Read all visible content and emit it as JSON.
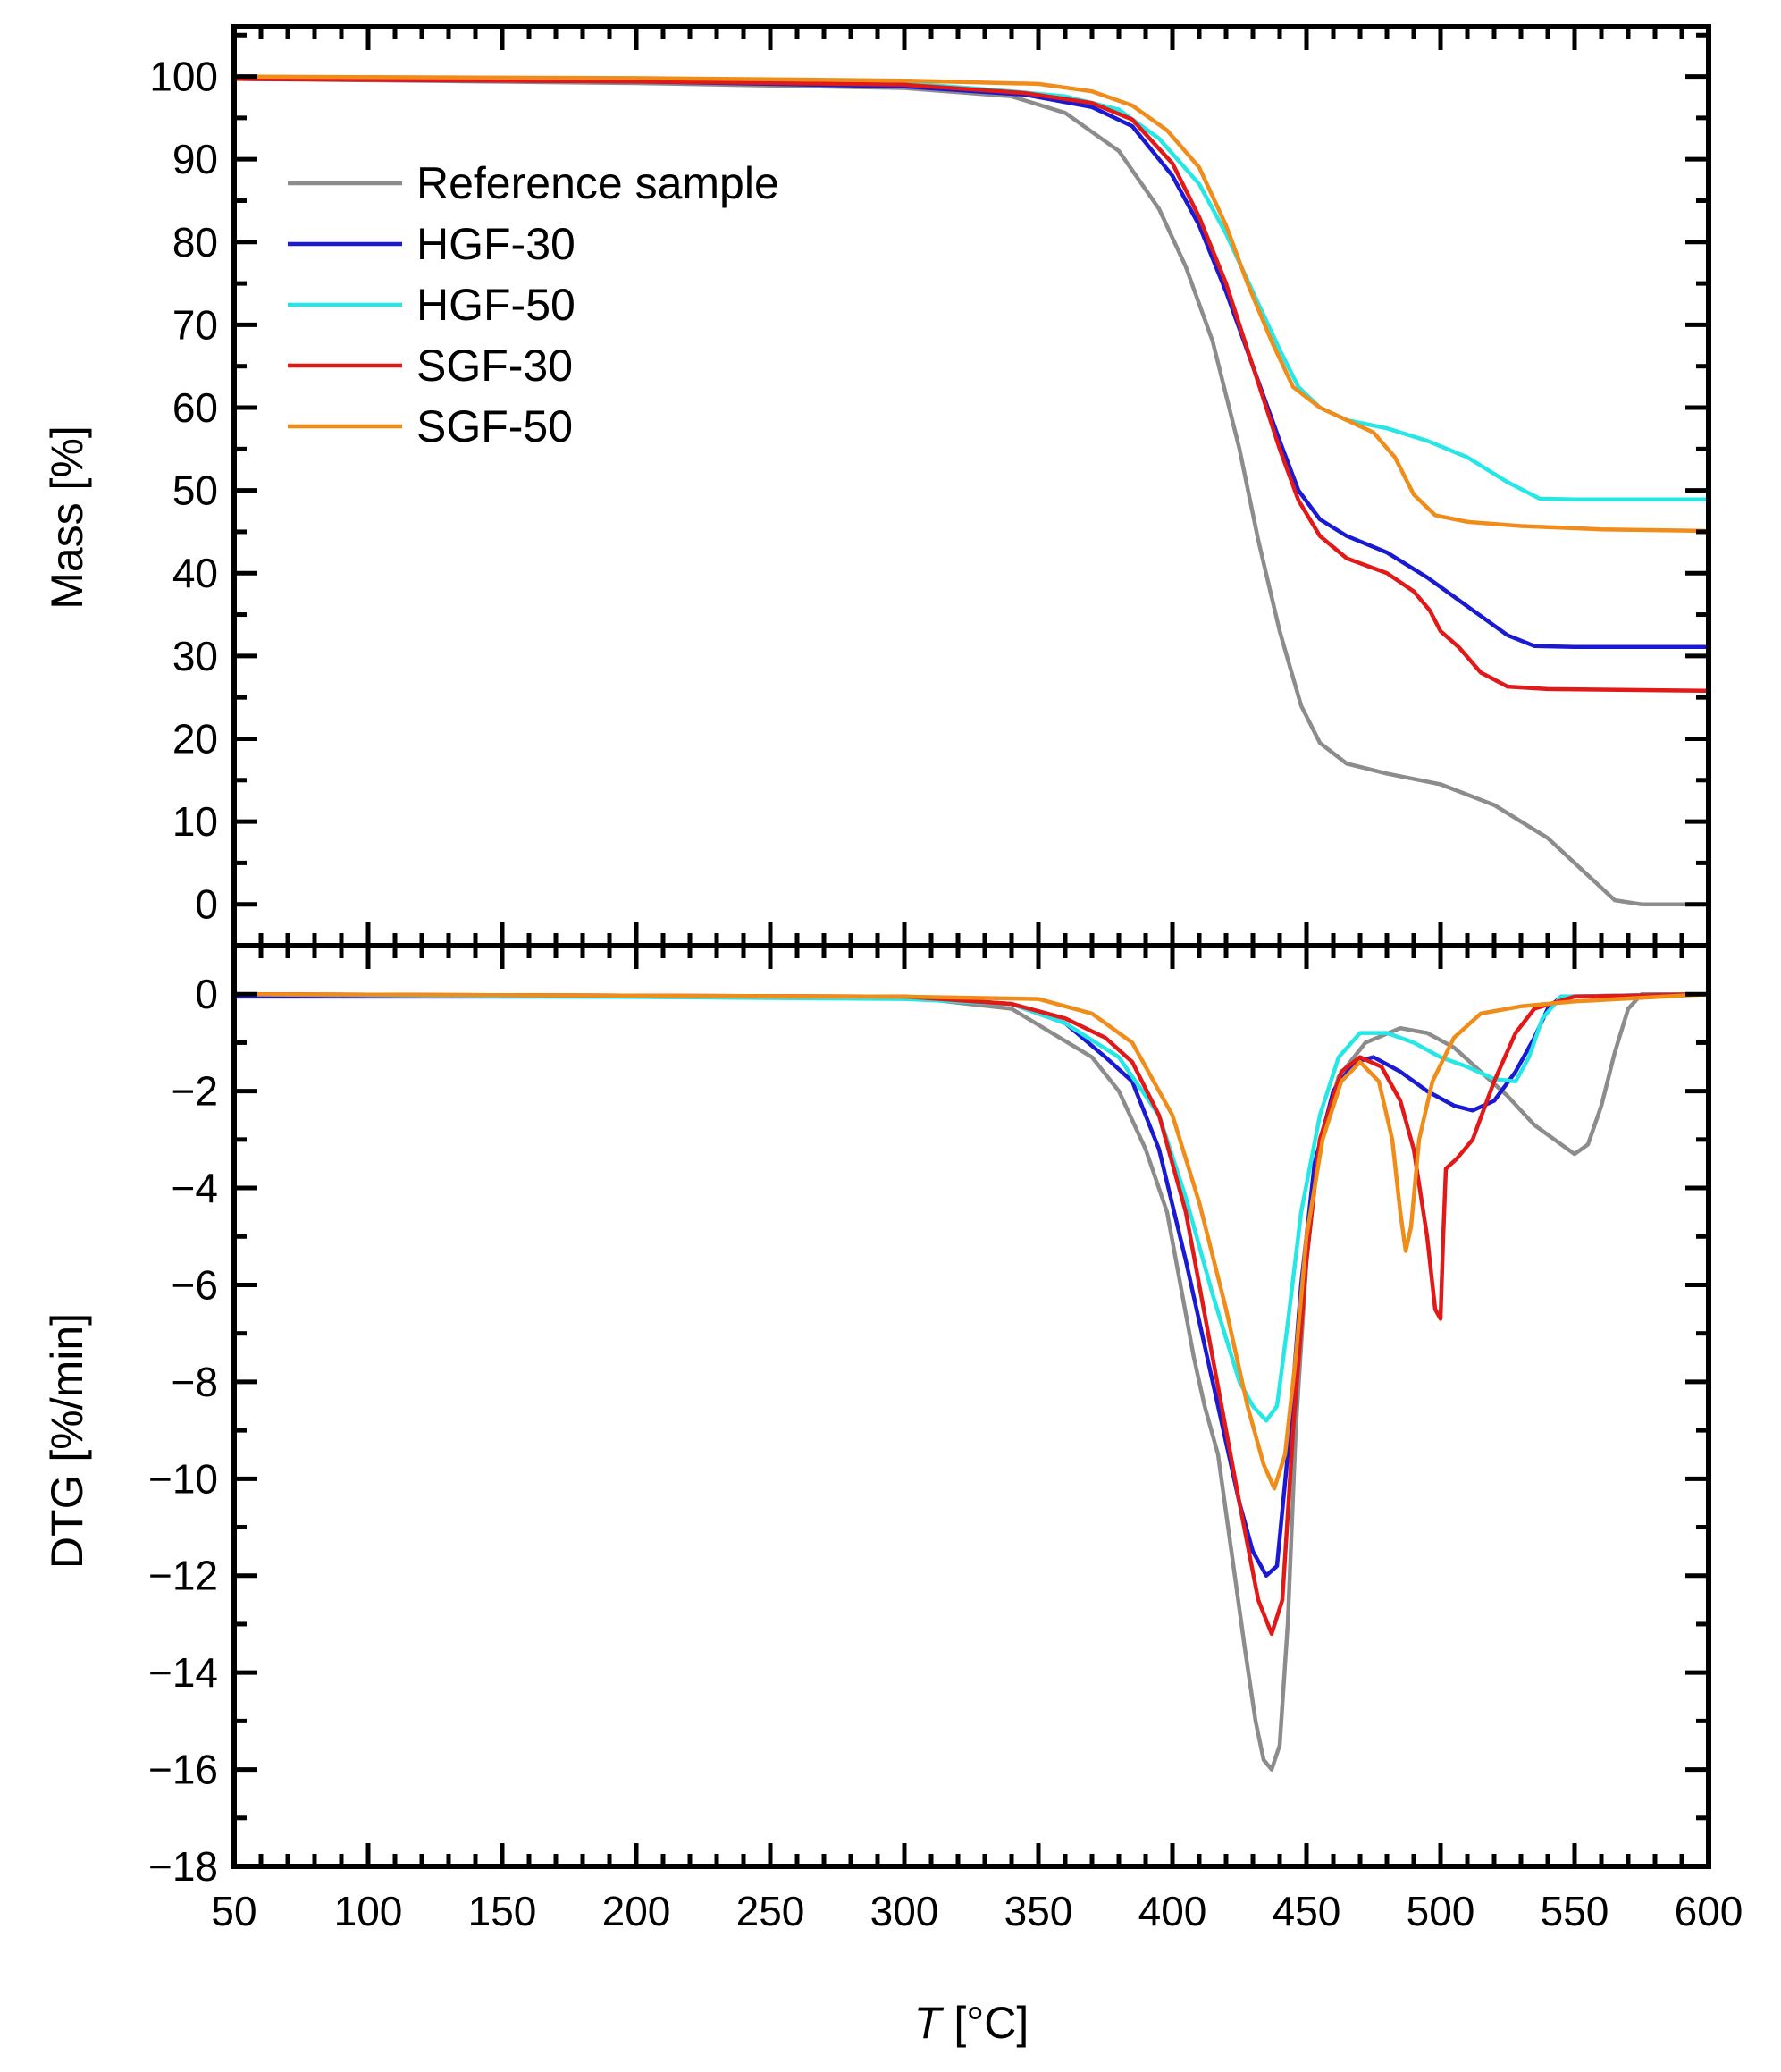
{
  "chart_data": [
    {
      "type": "line",
      "panel": "top",
      "ylabel": "Mass [%]",
      "xlim": [
        50,
        600
      ],
      "ylim": [
        -5,
        106
      ],
      "yticks": [
        0,
        10,
        20,
        30,
        40,
        50,
        60,
        70,
        80,
        90,
        100
      ],
      "legend": {
        "placement": "top-left"
      },
      "series": [
        {
          "name": "Reference sample",
          "color": "#8c8c8c",
          "points": [
            [
              50,
              99.7
            ],
            [
              200,
              99.2
            ],
            [
              300,
              98.6
            ],
            [
              340,
              97.6
            ],
            [
              360,
              95.6
            ],
            [
              380,
              91
            ],
            [
              395,
              84
            ],
            [
              405,
              77
            ],
            [
              415,
              68
            ],
            [
              425,
              55
            ],
            [
              432,
              44
            ],
            [
              440,
              33
            ],
            [
              448,
              24
            ],
            [
              455,
              19.5
            ],
            [
              465,
              17
            ],
            [
              480,
              15.8
            ],
            [
              500,
              14.5
            ],
            [
              520,
              12
            ],
            [
              540,
              8
            ],
            [
              555,
              3.5
            ],
            [
              565,
              0.5
            ],
            [
              575,
              0
            ],
            [
              600,
              0
            ]
          ]
        },
        {
          "name": "HGF-30",
          "color": "#1a1ad2",
          "points": [
            [
              50,
              99.7
            ],
            [
              200,
              99.4
            ],
            [
              300,
              98.8
            ],
            [
              345,
              97.8
            ],
            [
              370,
              96.3
            ],
            [
              385,
              94
            ],
            [
              400,
              88
            ],
            [
              410,
              82
            ],
            [
              420,
              74
            ],
            [
              430,
              65
            ],
            [
              440,
              56
            ],
            [
              447,
              50
            ],
            [
              455,
              46.5
            ],
            [
              465,
              44.5
            ],
            [
              480,
              42.5
            ],
            [
              495,
              39.5
            ],
            [
              510,
              36
            ],
            [
              525,
              32.5
            ],
            [
              535,
              31.2
            ],
            [
              550,
              31.1
            ],
            [
              600,
              31.1
            ]
          ]
        },
        {
          "name": "HGF-50",
          "color": "#27e6e6",
          "points": [
            [
              50,
              99.8
            ],
            [
              200,
              99.5
            ],
            [
              300,
              99.2
            ],
            [
              340,
              98.2
            ],
            [
              360,
              97.6
            ],
            [
              380,
              96
            ],
            [
              395,
              92.5
            ],
            [
              410,
              87
            ],
            [
              420,
              81
            ],
            [
              430,
              74
            ],
            [
              440,
              67
            ],
            [
              447,
              62.5
            ],
            [
              455,
              60
            ],
            [
              465,
              58.5
            ],
            [
              480,
              57.5
            ],
            [
              495,
              56
            ],
            [
              510,
              54
            ],
            [
              525,
              51
            ],
            [
              537,
              49
            ],
            [
              550,
              48.9
            ],
            [
              600,
              48.9
            ]
          ]
        },
        {
          "name": "SGF-30",
          "color": "#e11919",
          "points": [
            [
              50,
              99.7
            ],
            [
              200,
              99.4
            ],
            [
              300,
              99
            ],
            [
              345,
              98
            ],
            [
              370,
              96.8
            ],
            [
              385,
              94.8
            ],
            [
              400,
              89.5
            ],
            [
              410,
              83
            ],
            [
              420,
              75
            ],
            [
              430,
              65
            ],
            [
              440,
              55
            ],
            [
              447,
              48.8
            ],
            [
              455,
              44.5
            ],
            [
              465,
              41.8
            ],
            [
              480,
              40
            ],
            [
              490,
              37.8
            ],
            [
              496,
              35.5
            ],
            [
              500,
              33
            ],
            [
              507,
              31
            ],
            [
              515,
              28
            ],
            [
              525,
              26.3
            ],
            [
              540,
              26
            ],
            [
              600,
              25.8
            ]
          ]
        },
        {
          "name": "SGF-50",
          "color": "#f08c19",
          "points": [
            [
              50,
              100
            ],
            [
              200,
              99.8
            ],
            [
              300,
              99.5
            ],
            [
              350,
              99.1
            ],
            [
              370,
              98.2
            ],
            [
              385,
              96.5
            ],
            [
              398,
              93.5
            ],
            [
              410,
              89
            ],
            [
              420,
              82
            ],
            [
              428,
              75
            ],
            [
              437,
              68
            ],
            [
              445,
              62.5
            ],
            [
              455,
              60
            ],
            [
              465,
              58.5
            ],
            [
              475,
              57
            ],
            [
              483,
              54
            ],
            [
              490,
              49.5
            ],
            [
              498,
              47
            ],
            [
              510,
              46.2
            ],
            [
              530,
              45.7
            ],
            [
              560,
              45.3
            ],
            [
              600,
              45.1
            ]
          ]
        }
      ]
    },
    {
      "type": "line",
      "panel": "bottom",
      "xlabel": "T [°C]",
      "ylabel": "DTG [%/min]",
      "xlim": [
        50,
        600
      ],
      "ylim": [
        -18,
        1
      ],
      "xticks": [
        50,
        100,
        150,
        200,
        250,
        300,
        350,
        400,
        450,
        500,
        550,
        600
      ],
      "yticks": [
        0,
        -2,
        -4,
        -6,
        -8,
        -10,
        -12,
        -14,
        -16,
        -18
      ],
      "series": [
        {
          "name": "Reference sample",
          "color": "#8c8c8c",
          "points": [
            [
              50,
              0
            ],
            [
              300,
              -0.05
            ],
            [
              340,
              -0.3
            ],
            [
              355,
              -0.8
            ],
            [
              370,
              -1.3
            ],
            [
              380,
              -2
            ],
            [
              390,
              -3.2
            ],
            [
              398,
              -4.5
            ],
            [
              403,
              -6
            ],
            [
              408,
              -7.5
            ],
            [
              412,
              -8.5
            ],
            [
              417,
              -9.5
            ],
            [
              422,
              -11.5
            ],
            [
              427,
              -13.5
            ],
            [
              431,
              -15
            ],
            [
              434,
              -15.8
            ],
            [
              437,
              -16
            ],
            [
              440,
              -15.5
            ],
            [
              443,
              -13
            ],
            [
              446,
              -9
            ],
            [
              450,
              -5.5
            ],
            [
              455,
              -3
            ],
            [
              462,
              -1.7
            ],
            [
              472,
              -1
            ],
            [
              485,
              -0.7
            ],
            [
              495,
              -0.8
            ],
            [
              505,
              -1.1
            ],
            [
              515,
              -1.6
            ],
            [
              525,
              -2.1
            ],
            [
              535,
              -2.7
            ],
            [
              545,
              -3.1
            ],
            [
              550,
              -3.3
            ],
            [
              555,
              -3.1
            ],
            [
              560,
              -2.3
            ],
            [
              565,
              -1.2
            ],
            [
              570,
              -0.3
            ],
            [
              575,
              0
            ],
            [
              600,
              0
            ]
          ]
        },
        {
          "name": "HGF-30",
          "color": "#1a1ad2",
          "points": [
            [
              50,
              -0.05
            ],
            [
              300,
              -0.05
            ],
            [
              340,
              -0.2
            ],
            [
              360,
              -0.6
            ],
            [
              375,
              -1.3
            ],
            [
              385,
              -1.8
            ],
            [
              395,
              -3.2
            ],
            [
              405,
              -5.5
            ],
            [
              415,
              -8
            ],
            [
              425,
              -10.5
            ],
            [
              430,
              -11.5
            ],
            [
              435,
              -12
            ],
            [
              439,
              -11.8
            ],
            [
              443,
              -9.5
            ],
            [
              448,
              -6
            ],
            [
              453,
              -3.5
            ],
            [
              460,
              -2
            ],
            [
              468,
              -1.4
            ],
            [
              475,
              -1.3
            ],
            [
              485,
              -1.6
            ],
            [
              495,
              -2
            ],
            [
              505,
              -2.3
            ],
            [
              512,
              -2.4
            ],
            [
              520,
              -2.2
            ],
            [
              528,
              -1.6
            ],
            [
              535,
              -0.9
            ],
            [
              540,
              -0.3
            ],
            [
              545,
              -0.05
            ],
            [
              600,
              0
            ]
          ]
        },
        {
          "name": "HGF-50",
          "color": "#27e6e6",
          "points": [
            [
              50,
              0
            ],
            [
              300,
              -0.1
            ],
            [
              340,
              -0.2
            ],
            [
              360,
              -0.6
            ],
            [
              380,
              -1.3
            ],
            [
              395,
              -2.5
            ],
            [
              405,
              -4.2
            ],
            [
              415,
              -6.2
            ],
            [
              425,
              -8
            ],
            [
              430,
              -8.5
            ],
            [
              435,
              -8.8
            ],
            [
              439,
              -8.5
            ],
            [
              443,
              -6.8
            ],
            [
              448,
              -4.5
            ],
            [
              455,
              -2.5
            ],
            [
              462,
              -1.3
            ],
            [
              470,
              -0.8
            ],
            [
              480,
              -0.8
            ],
            [
              490,
              -1
            ],
            [
              500,
              -1.3
            ],
            [
              510,
              -1.5
            ],
            [
              520,
              -1.75
            ],
            [
              528,
              -1.8
            ],
            [
              533,
              -1.3
            ],
            [
              538,
              -0.5
            ],
            [
              545,
              -0.05
            ],
            [
              600,
              0
            ]
          ]
        },
        {
          "name": "SGF-30",
          "color": "#e11919",
          "points": [
            [
              50,
              0
            ],
            [
              300,
              -0.05
            ],
            [
              340,
              -0.2
            ],
            [
              360,
              -0.5
            ],
            [
              375,
              -0.9
            ],
            [
              385,
              -1.4
            ],
            [
              395,
              -2.5
            ],
            [
              405,
              -4.5
            ],
            [
              415,
              -7.5
            ],
            [
              425,
              -10.5
            ],
            [
              432,
              -12.5
            ],
            [
              437,
              -13.2
            ],
            [
              441,
              -12.5
            ],
            [
              445,
              -9
            ],
            [
              450,
              -5.5
            ],
            [
              455,
              -3
            ],
            [
              463,
              -1.6
            ],
            [
              470,
              -1.3
            ],
            [
              478,
              -1.5
            ],
            [
              485,
              -2.2
            ],
            [
              490,
              -3.2
            ],
            [
              495,
              -5
            ],
            [
              498,
              -6.5
            ],
            [
              500,
              -6.7
            ],
            [
              501,
              -5
            ],
            [
              502,
              -3.6
            ],
            [
              506,
              -3.4
            ],
            [
              512,
              -3
            ],
            [
              520,
              -1.8
            ],
            [
              528,
              -0.8
            ],
            [
              535,
              -0.3
            ],
            [
              550,
              -0.05
            ],
            [
              600,
              0
            ]
          ]
        },
        {
          "name": "SGF-50",
          "color": "#f08c19",
          "points": [
            [
              50,
              0
            ],
            [
              300,
              -0.05
            ],
            [
              350,
              -0.1
            ],
            [
              370,
              -0.4
            ],
            [
              385,
              -1
            ],
            [
              400,
              -2.5
            ],
            [
              410,
              -4.3
            ],
            [
              420,
              -6.5
            ],
            [
              428,
              -8.5
            ],
            [
              434,
              -9.7
            ],
            [
              438,
              -10.2
            ],
            [
              442,
              -9.5
            ],
            [
              446,
              -7.5
            ],
            [
              450,
              -5
            ],
            [
              456,
              -3
            ],
            [
              463,
              -1.8
            ],
            [
              470,
              -1.4
            ],
            [
              477,
              -1.8
            ],
            [
              482,
              -3
            ],
            [
              485,
              -4.5
            ],
            [
              487,
              -5.3
            ],
            [
              489,
              -4.8
            ],
            [
              492,
              -3
            ],
            [
              497,
              -1.8
            ],
            [
              505,
              -0.9
            ],
            [
              515,
              -0.4
            ],
            [
              530,
              -0.25
            ],
            [
              550,
              -0.15
            ],
            [
              600,
              0
            ]
          ]
        }
      ]
    }
  ]
}
